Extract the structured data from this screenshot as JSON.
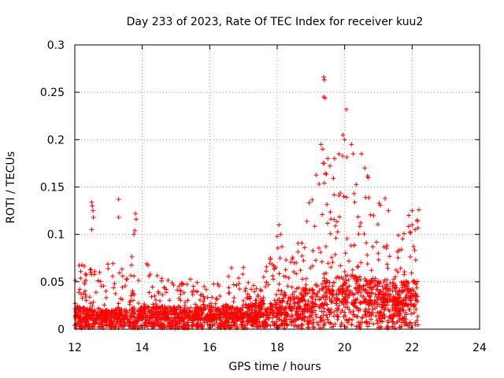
{
  "chart_data": {
    "type": "scatter",
    "title": "Day 233 of 2023, Rate Of TEC Index for receiver kuu2",
    "xlabel": "GPS time / hours",
    "ylabel": "ROTI / TECUs",
    "xlim": [
      12,
      24
    ],
    "ylim": [
      0,
      0.3
    ],
    "xticks": [
      12,
      14,
      16,
      18,
      20,
      22,
      24
    ],
    "xtick_labels": [
      "12",
      "14",
      "16",
      "18",
      "20",
      "22",
      "24"
    ],
    "yticks": [
      0,
      0.05,
      0.1,
      0.15,
      0.2,
      0.25,
      0.3
    ],
    "ytick_labels": [
      "0",
      "0.05",
      "0.1",
      "0.15",
      "0.2",
      "0.25",
      "0.3"
    ],
    "grid": true,
    "marker": "+",
    "color": "#ff0000",
    "envelope": {
      "x": [
        12.0,
        12.5,
        13.0,
        13.5,
        14.0,
        14.5,
        15.0,
        15.5,
        16.0,
        16.5,
        17.0,
        17.5,
        18.0,
        18.5,
        19.0,
        19.5,
        20.0,
        20.5,
        21.0,
        21.5,
        22.0,
        22.2
      ],
      "upper": [
        0.07,
        0.065,
        0.07,
        0.075,
        0.08,
        0.06,
        0.05,
        0.055,
        0.045,
        0.07,
        0.06,
        0.05,
        0.1,
        0.08,
        0.15,
        0.19,
        0.2,
        0.18,
        0.14,
        0.1,
        0.12,
        0.12
      ],
      "median": [
        0.012,
        0.01,
        0.01,
        0.01,
        0.012,
        0.012,
        0.011,
        0.011,
        0.011,
        0.012,
        0.012,
        0.014,
        0.016,
        0.02,
        0.022,
        0.026,
        0.028,
        0.028,
        0.026,
        0.025,
        0.025,
        0.025
      ]
    },
    "series": [
      {
        "name": "ROTI",
        "points": [
          [
            12.5,
            0.134
          ],
          [
            12.52,
            0.13
          ],
          [
            12.54,
            0.125
          ],
          [
            12.55,
            0.118
          ],
          [
            12.5,
            0.105
          ],
          [
            13.3,
            0.137
          ],
          [
            13.3,
            0.118
          ],
          [
            13.8,
            0.122
          ],
          [
            13.82,
            0.116
          ],
          [
            13.78,
            0.104
          ],
          [
            13.75,
            0.1
          ],
          [
            17.0,
            0.065
          ],
          [
            17.6,
            0.055
          ],
          [
            17.8,
            0.075
          ],
          [
            18.05,
            0.11
          ],
          [
            18.1,
            0.1
          ],
          [
            18.0,
            0.098
          ],
          [
            19.38,
            0.266
          ],
          [
            19.4,
            0.263
          ],
          [
            19.38,
            0.245
          ],
          [
            19.42,
            0.244
          ],
          [
            19.3,
            0.195
          ],
          [
            19.35,
            0.19
          ],
          [
            19.5,
            0.18
          ],
          [
            19.7,
            0.18
          ],
          [
            20.05,
            0.232
          ],
          [
            19.95,
            0.205
          ],
          [
            20.0,
            0.2
          ],
          [
            20.2,
            0.195
          ],
          [
            20.25,
            0.185
          ],
          [
            20.5,
            0.185
          ],
          [
            20.6,
            0.17
          ],
          [
            20.7,
            0.16
          ],
          [
            21.2,
            0.138
          ],
          [
            21.3,
            0.125
          ],
          [
            21.9,
            0.12
          ],
          [
            22.0,
            0.125
          ],
          [
            22.2,
            0.126
          ],
          [
            22.15,
            0.115
          ],
          [
            22.0,
            0.11
          ]
        ]
      }
    ]
  }
}
